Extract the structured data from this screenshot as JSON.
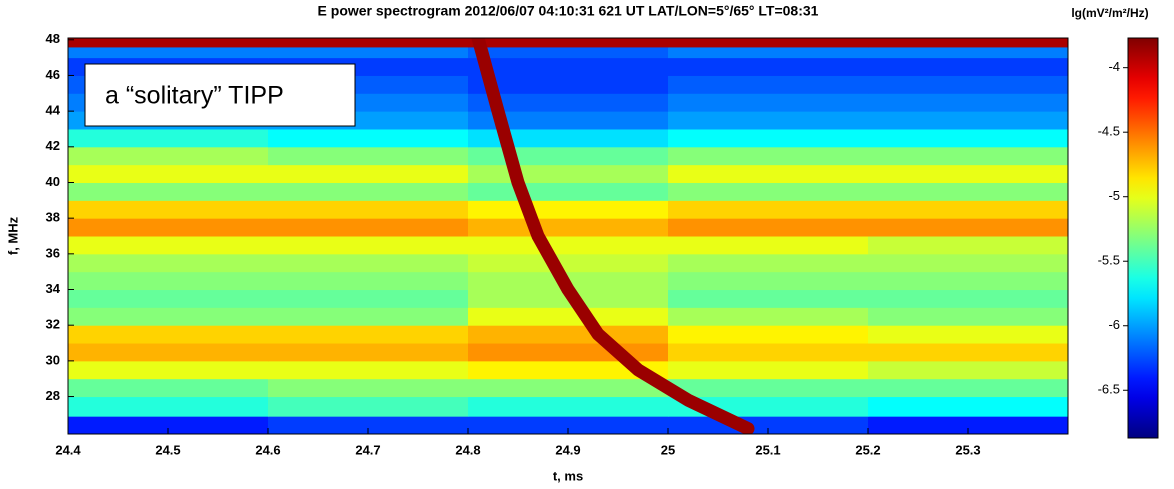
{
  "chart_data": {
    "type": "spectrogram",
    "title": "E power spectrogram 2012/06/07 04:10:31 621 UT  LAT/LON=5°/65°  LT=08:31",
    "x_label": "t, ms",
    "y_label": "f, MHz",
    "colorbar_label": "lg(mV²/m²/Hz)",
    "annotation": "a “solitary” TIPP",
    "xlim": [
      24.4,
      25.4
    ],
    "xticks": [
      24.4,
      24.5,
      24.6,
      24.7,
      24.8,
      24.9,
      25,
      25.1,
      25.2,
      25.3
    ],
    "ylim": [
      25.9,
      48.1
    ],
    "yticks": [
      28,
      30,
      32,
      34,
      36,
      38,
      40,
      42,
      44,
      46,
      48
    ],
    "clim": [
      -6.87,
      -3.77
    ],
    "cticks": [
      -6.5,
      -6,
      -5.5,
      -5,
      -4.5,
      -4
    ],
    "colormap": "jet",
    "z_xedges": [
      24.4,
      24.6,
      24.8,
      25.0,
      25.2,
      25.4
    ],
    "z_yedges": [
      25.9,
      26.9,
      28,
      29,
      30,
      31,
      32,
      33,
      34,
      35,
      36,
      37,
      38,
      39,
      40,
      41,
      42,
      43,
      44,
      45,
      46,
      47,
      47.6,
      48.1
    ],
    "z": [
      [
        -6.4,
        -6.3,
        -6.3,
        -6.3,
        -6.4
      ],
      [
        -5.6,
        -5.5,
        -5.6,
        -5.6,
        -5.7
      ],
      [
        -5.4,
        -5.3,
        -5.3,
        -5.4,
        -5.4
      ],
      [
        -5.0,
        -5.0,
        -4.9,
        -5.0,
        -5.1
      ],
      [
        -4.7,
        -4.7,
        -4.6,
        -4.8,
        -4.8
      ],
      [
        -4.8,
        -4.8,
        -4.7,
        -4.9,
        -5.0
      ],
      [
        -5.3,
        -5.3,
        -5.0,
        -5.2,
        -5.3
      ],
      [
        -5.4,
        -5.4,
        -5.2,
        -5.4,
        -5.4
      ],
      [
        -5.3,
        -5.3,
        -5.2,
        -5.3,
        -5.3
      ],
      [
        -5.2,
        -5.2,
        -5.1,
        -5.2,
        -5.2
      ],
      [
        -5.0,
        -5.0,
        -5.0,
        -5.0,
        -5.1
      ],
      [
        -4.6,
        -4.6,
        -4.7,
        -4.6,
        -4.6
      ],
      [
        -4.8,
        -4.8,
        -4.9,
        -4.8,
        -4.8
      ],
      [
        -5.3,
        -5.3,
        -5.4,
        -5.3,
        -5.3
      ],
      [
        -5.0,
        -5.0,
        -5.2,
        -5.0,
        -5.0
      ],
      [
        -5.2,
        -5.3,
        -5.4,
        -5.3,
        -5.3
      ],
      [
        -5.6,
        -5.7,
        -5.8,
        -5.7,
        -5.7
      ],
      [
        -6.0,
        -6.0,
        -6.1,
        -6.0,
        -6.0
      ],
      [
        -6.1,
        -6.1,
        -6.2,
        -6.1,
        -6.1
      ],
      [
        -6.2,
        -6.2,
        -6.3,
        -6.2,
        -6.2
      ],
      [
        -6.3,
        -6.3,
        -6.3,
        -6.3,
        -6.3
      ],
      [
        -6.1,
        -6.1,
        -6.2,
        -6.1,
        -6.1
      ],
      [
        -3.9,
        -3.9,
        -3.9,
        -3.9,
        -3.9
      ]
    ],
    "trace": {
      "x": [
        24.81,
        24.83,
        24.85,
        24.87,
        24.9,
        24.93,
        24.97,
        25.02,
        25.08
      ],
      "y": [
        48.1,
        44,
        40,
        37,
        34,
        31.5,
        29.5,
        27.8,
        26.2
      ],
      "value": -3.85
    }
  }
}
